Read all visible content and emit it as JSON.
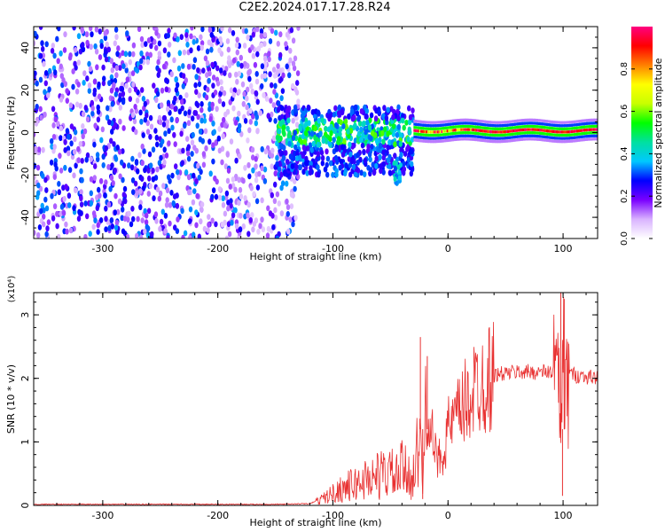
{
  "title": "C2E2.2024.017.17.28.R24",
  "chart_data": [
    {
      "type": "heatmap",
      "title": "",
      "xlabel": "Height of straight line (km)",
      "ylabel": "Frequency (Hz)",
      "xlim": [
        -360,
        130
      ],
      "ylim": [
        -50,
        50
      ],
      "x_ticks": [
        -300,
        -200,
        -100,
        0,
        100
      ],
      "y_ticks": [
        -40,
        -20,
        0,
        20,
        40
      ],
      "colorbar": {
        "label": "Normalized spectral amplitude",
        "range": [
          0.0,
          1.0
        ],
        "ticks": [
          "0.0",
          "0.2",
          "0.4",
          "0.6",
          "0.8"
        ],
        "colors": [
          "#ffffff",
          "#d9b3ff",
          "#7a00ff",
          "#0000ff",
          "#00c8ff",
          "#00e0a0",
          "#00ff00",
          "#c8ff00",
          "#ffff00",
          "#ff8000",
          "#ff0000",
          "#ff0080"
        ]
      },
      "regions": [
        {
          "name": "noise",
          "x": [
            -360,
            -130
          ],
          "freq": [
            -50,
            50
          ],
          "amplitude": 0.25
        },
        {
          "name": "transition",
          "x": [
            -150,
            -30
          ],
          "freq": [
            -20,
            12
          ],
          "amplitude": 0.4
        },
        {
          "name": "signal",
          "x": [
            -30,
            130
          ],
          "freq": [
            -2,
            3
          ],
          "amplitude": 0.9
        }
      ]
    },
    {
      "type": "line",
      "title": "",
      "xlabel": "Height of straight line (km)",
      "ylabel": "SNR (10 * v/v)",
      "scale_label": "(x10⁴)",
      "xlim": [
        -360,
        130
      ],
      "ylim": [
        0,
        3.35
      ],
      "x_ticks": [
        -300,
        -200,
        -100,
        0,
        100
      ],
      "y_ticks": [
        0,
        1,
        2,
        3
      ],
      "series": [
        {
          "color": "#e83030",
          "x": [
            -360,
            -300,
            -250,
            -200,
            -150,
            -120,
            -110,
            -100,
            -90,
            -80,
            -70,
            -60,
            -50,
            -45,
            -40,
            -35,
            -30,
            -27,
            -24,
            -22,
            -20,
            -18,
            -15,
            -12,
            -10,
            -5,
            0,
            5,
            10,
            15,
            20,
            25,
            30,
            35,
            40,
            50,
            60,
            70,
            80,
            90,
            95,
            98,
            100,
            102,
            105,
            110,
            120,
            130
          ],
          "y": [
            0.01,
            0.01,
            0.01,
            0.01,
            0.01,
            0.02,
            0.1,
            0.2,
            0.3,
            0.35,
            0.45,
            0.5,
            0.55,
            0.45,
            0.6,
            0.5,
            0.55,
            0.8,
            1.1,
            0.2,
            1.5,
            1.6,
            1.2,
            0.9,
            0.7,
            0.8,
            1.2,
            1.3,
            1.45,
            1.6,
            1.75,
            1.9,
            1.95,
            2.0,
            2.05,
            2.08,
            2.1,
            2.1,
            2.1,
            2.1,
            2.15,
            1.0,
            2.8,
            1.5,
            2.1,
            2.05,
            2.03,
            2.0
          ]
        }
      ]
    }
  ]
}
